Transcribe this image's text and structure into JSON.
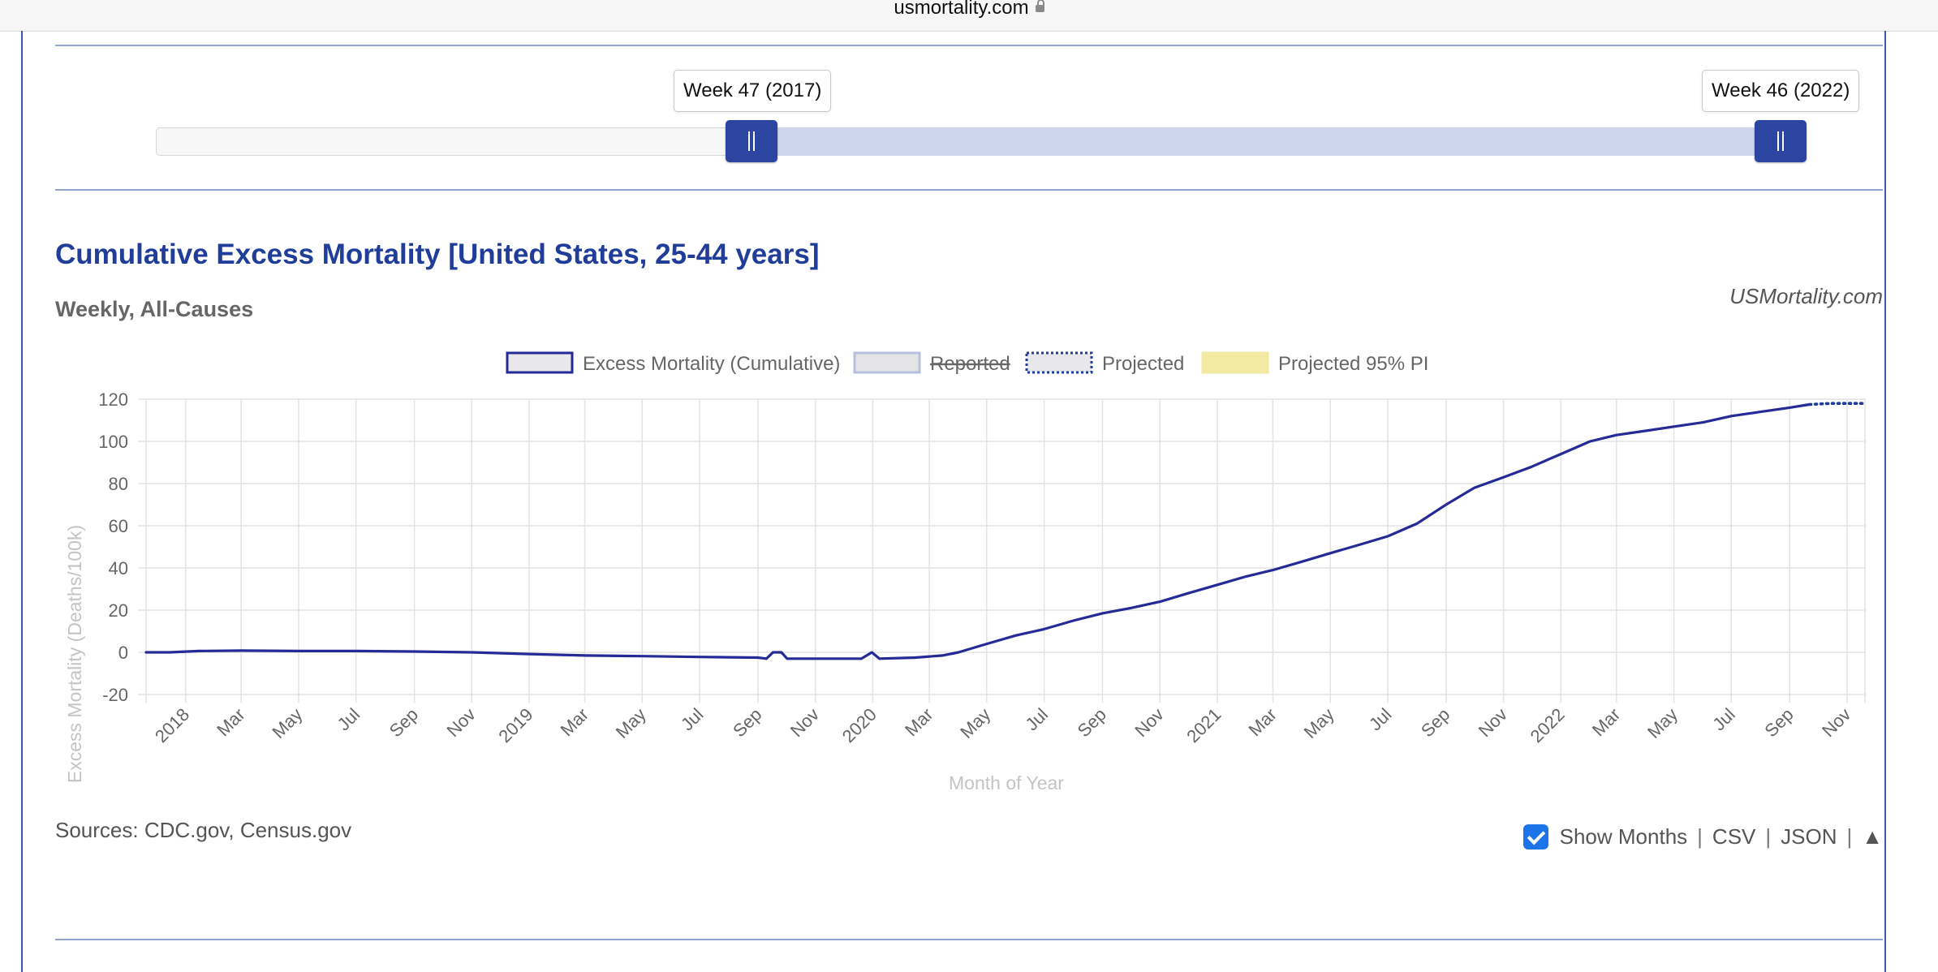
{
  "browser": {
    "url": "usmortality.com"
  },
  "range_slider": {
    "start_label": "Week 47 (2017)",
    "end_label": "Week 46 (2022)"
  },
  "header": {
    "title": "Cumulative Excess Mortality [United States, 25-44 years]",
    "subtitle": "Weekly, All-Causes",
    "brand": "USMortality.com"
  },
  "legend": {
    "items": [
      {
        "label": "Excess Mortality (Cumulative)",
        "swatch_fill": "#e8e8ec",
        "swatch_stroke": "#252a96",
        "style": "solid"
      },
      {
        "label": "Reported",
        "swatch_fill": "#e4e4e6",
        "swatch_stroke": "#b7bfdf",
        "style": "solid",
        "hidden": true
      },
      {
        "label": "Projected",
        "swatch_fill": "#e8e8ec",
        "swatch_stroke": "#1f3d99",
        "style": "dotted"
      },
      {
        "label": "Projected 95% PI",
        "swatch_fill": "#f2eaa2",
        "swatch_stroke": "#f2eaa2",
        "style": "solid"
      }
    ]
  },
  "chart_data": {
    "type": "line",
    "title": "Cumulative Excess Mortality [United States, 25-44 years]",
    "subtitle": "Weekly, All-Causes",
    "xlabel": "Month of Year",
    "ylabel": "Excess Mortality (Deaths/100k)",
    "ylim": [
      -20,
      120
    ],
    "yticks": [
      120,
      100,
      80,
      60,
      40,
      20,
      0,
      -20
    ],
    "xlim": [
      "2017-11-20",
      "2022-11-20"
    ],
    "xticks": [
      {
        "date": "2018-01-01",
        "label": "2018"
      },
      {
        "date": "2018-03-01",
        "label": "Mar"
      },
      {
        "date": "2018-05-01",
        "label": "May"
      },
      {
        "date": "2018-07-01",
        "label": "Jul"
      },
      {
        "date": "2018-09-01",
        "label": "Sep"
      },
      {
        "date": "2018-11-01",
        "label": "Nov"
      },
      {
        "date": "2019-01-01",
        "label": "2019"
      },
      {
        "date": "2019-03-01",
        "label": "Mar"
      },
      {
        "date": "2019-05-01",
        "label": "May"
      },
      {
        "date": "2019-07-01",
        "label": "Jul"
      },
      {
        "date": "2019-09-01",
        "label": "Sep"
      },
      {
        "date": "2019-11-01",
        "label": "Nov"
      },
      {
        "date": "2020-01-01",
        "label": "2020"
      },
      {
        "date": "2020-03-01",
        "label": "Mar"
      },
      {
        "date": "2020-05-01",
        "label": "May"
      },
      {
        "date": "2020-07-01",
        "label": "Jul"
      },
      {
        "date": "2020-09-01",
        "label": "Sep"
      },
      {
        "date": "2020-11-01",
        "label": "Nov"
      },
      {
        "date": "2021-01-01",
        "label": "2021"
      },
      {
        "date": "2021-03-01",
        "label": "Mar"
      },
      {
        "date": "2021-05-01",
        "label": "May"
      },
      {
        "date": "2021-07-01",
        "label": "Jul"
      },
      {
        "date": "2021-09-01",
        "label": "Sep"
      },
      {
        "date": "2021-11-01",
        "label": "Nov"
      },
      {
        "date": "2022-01-01",
        "label": "2022"
      },
      {
        "date": "2022-03-01",
        "label": "Mar"
      },
      {
        "date": "2022-05-01",
        "label": "May"
      },
      {
        "date": "2022-07-01",
        "label": "Jul"
      },
      {
        "date": "2022-09-01",
        "label": "Sep"
      },
      {
        "date": "2022-11-01",
        "label": "Nov"
      }
    ],
    "grid": true,
    "legend_position": "top",
    "series": [
      {
        "name": "Excess Mortality (Cumulative)",
        "color": "#252a96",
        "style": "solid",
        "points": [
          [
            "2017-11-20",
            0
          ],
          [
            "2017-12-15",
            0
          ],
          [
            "2018-01-15",
            0.6
          ],
          [
            "2018-03-01",
            0.8
          ],
          [
            "2018-05-01",
            0.6
          ],
          [
            "2018-07-01",
            0.6
          ],
          [
            "2018-09-01",
            0.4
          ],
          [
            "2018-11-01",
            0
          ],
          [
            "2019-01-01",
            -0.8
          ],
          [
            "2019-03-01",
            -1.5
          ],
          [
            "2019-05-01",
            -1.8
          ],
          [
            "2019-07-01",
            -2.2
          ],
          [
            "2019-09-01",
            -2.5
          ],
          [
            "2019-09-10",
            -3.0
          ],
          [
            "2019-09-17",
            0
          ],
          [
            "2019-09-26",
            0
          ],
          [
            "2019-10-02",
            -3.0
          ],
          [
            "2019-11-01",
            -3.0
          ],
          [
            "2019-12-20",
            -3.0
          ],
          [
            "2019-12-31",
            0
          ],
          [
            "2020-01-08",
            -3.0
          ],
          [
            "2020-02-15",
            -2.5
          ],
          [
            "2020-03-15",
            -1.5
          ],
          [
            "2020-04-01",
            0
          ],
          [
            "2020-05-01",
            4
          ],
          [
            "2020-06-01",
            8
          ],
          [
            "2020-07-01",
            11
          ],
          [
            "2020-08-01",
            15
          ],
          [
            "2020-09-01",
            18.5
          ],
          [
            "2020-10-01",
            21
          ],
          [
            "2020-11-01",
            24
          ],
          [
            "2020-12-01",
            28
          ],
          [
            "2021-01-01",
            32
          ],
          [
            "2021-02-01",
            36
          ],
          [
            "2021-03-01",
            39
          ],
          [
            "2021-04-01",
            43
          ],
          [
            "2021-05-01",
            47
          ],
          [
            "2021-06-01",
            51
          ],
          [
            "2021-07-01",
            55
          ],
          [
            "2021-08-01",
            61
          ],
          [
            "2021-09-01",
            70
          ],
          [
            "2021-10-01",
            78
          ],
          [
            "2021-11-01",
            83
          ],
          [
            "2021-12-01",
            88
          ],
          [
            "2022-01-01",
            94
          ],
          [
            "2022-02-01",
            100
          ],
          [
            "2022-03-01",
            103
          ],
          [
            "2022-04-01",
            105
          ],
          [
            "2022-05-01",
            107
          ],
          [
            "2022-06-01",
            109
          ],
          [
            "2022-07-01",
            112
          ],
          [
            "2022-08-01",
            114
          ],
          [
            "2022-09-01",
            116
          ],
          [
            "2022-09-22",
            117.5
          ]
        ]
      },
      {
        "name": "Projected",
        "color": "#1f3d99",
        "style": "dotted",
        "points": [
          [
            "2022-09-22",
            117.5
          ],
          [
            "2022-10-15",
            118
          ],
          [
            "2022-11-20",
            118
          ]
        ]
      }
    ]
  },
  "footer": {
    "sources": "Sources: CDC.gov, Census.gov",
    "show_months_label": "Show Months",
    "show_months_checked": true,
    "csv": "CSV",
    "json": "JSON",
    "sep": "|",
    "collapse_icon": "▲"
  }
}
